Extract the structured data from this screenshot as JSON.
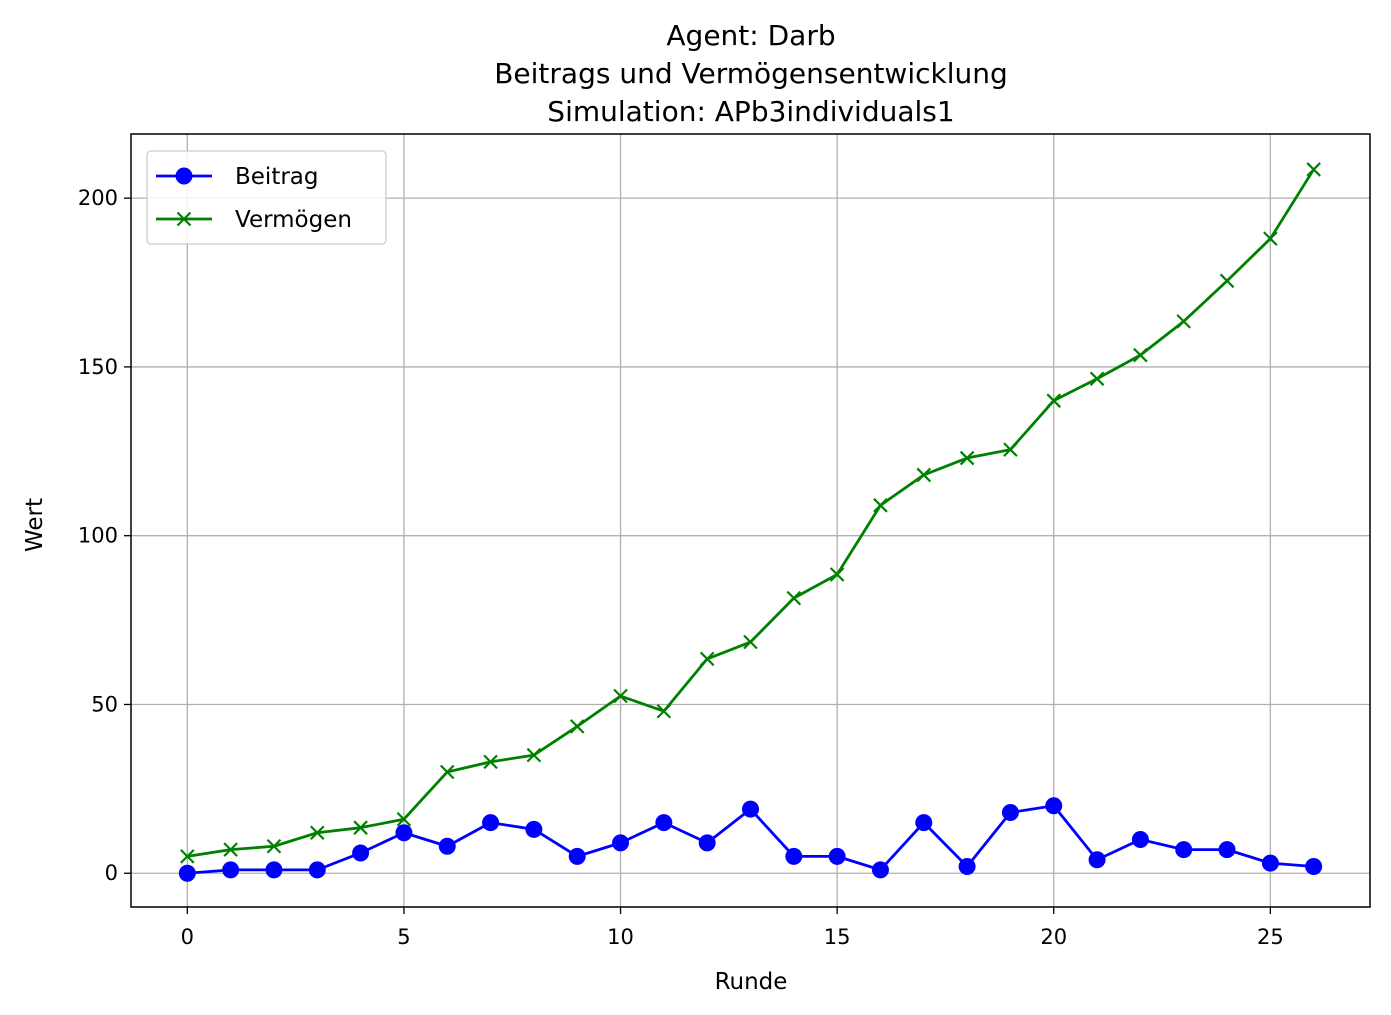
{
  "chart_data": {
    "type": "line",
    "title": [
      "Agent: Darb",
      "Beitrags und Vermögensentwicklung",
      "Simulation: APb3individuals1"
    ],
    "xlabel": "Runde",
    "ylabel": "Wert",
    "xlim": [
      -1.3,
      27.3
    ],
    "ylim": [
      -10,
      219
    ],
    "xticks": [
      0,
      5,
      10,
      15,
      20,
      25
    ],
    "yticks": [
      0,
      50,
      100,
      150,
      200
    ],
    "grid": true,
    "legend_position": "top-left",
    "x": [
      0,
      1,
      2,
      3,
      4,
      5,
      6,
      7,
      8,
      9,
      10,
      11,
      12,
      13,
      14,
      15,
      16,
      17,
      18,
      19,
      20,
      21,
      22,
      23,
      24,
      25,
      26
    ],
    "series": [
      {
        "name": "Beitrag",
        "color": "#0000ff",
        "marker": "circle",
        "values": [
          0,
          1,
          1,
          1,
          6,
          12,
          8,
          15,
          13,
          5,
          9,
          15,
          9,
          19,
          5,
          5,
          1,
          15,
          2,
          18,
          20,
          4,
          10,
          7,
          7,
          3,
          2
        ]
      },
      {
        "name": "Vermögen",
        "color": "#008000",
        "marker": "x",
        "values": [
          5,
          7,
          8,
          12,
          13.5,
          16,
          30,
          33,
          35,
          43.5,
          52.5,
          48,
          63.5,
          68.5,
          81.5,
          88.5,
          109,
          118,
          123,
          125.5,
          140,
          146.5,
          153.5,
          163.5,
          175.5,
          188,
          208.5
        ]
      }
    ]
  }
}
